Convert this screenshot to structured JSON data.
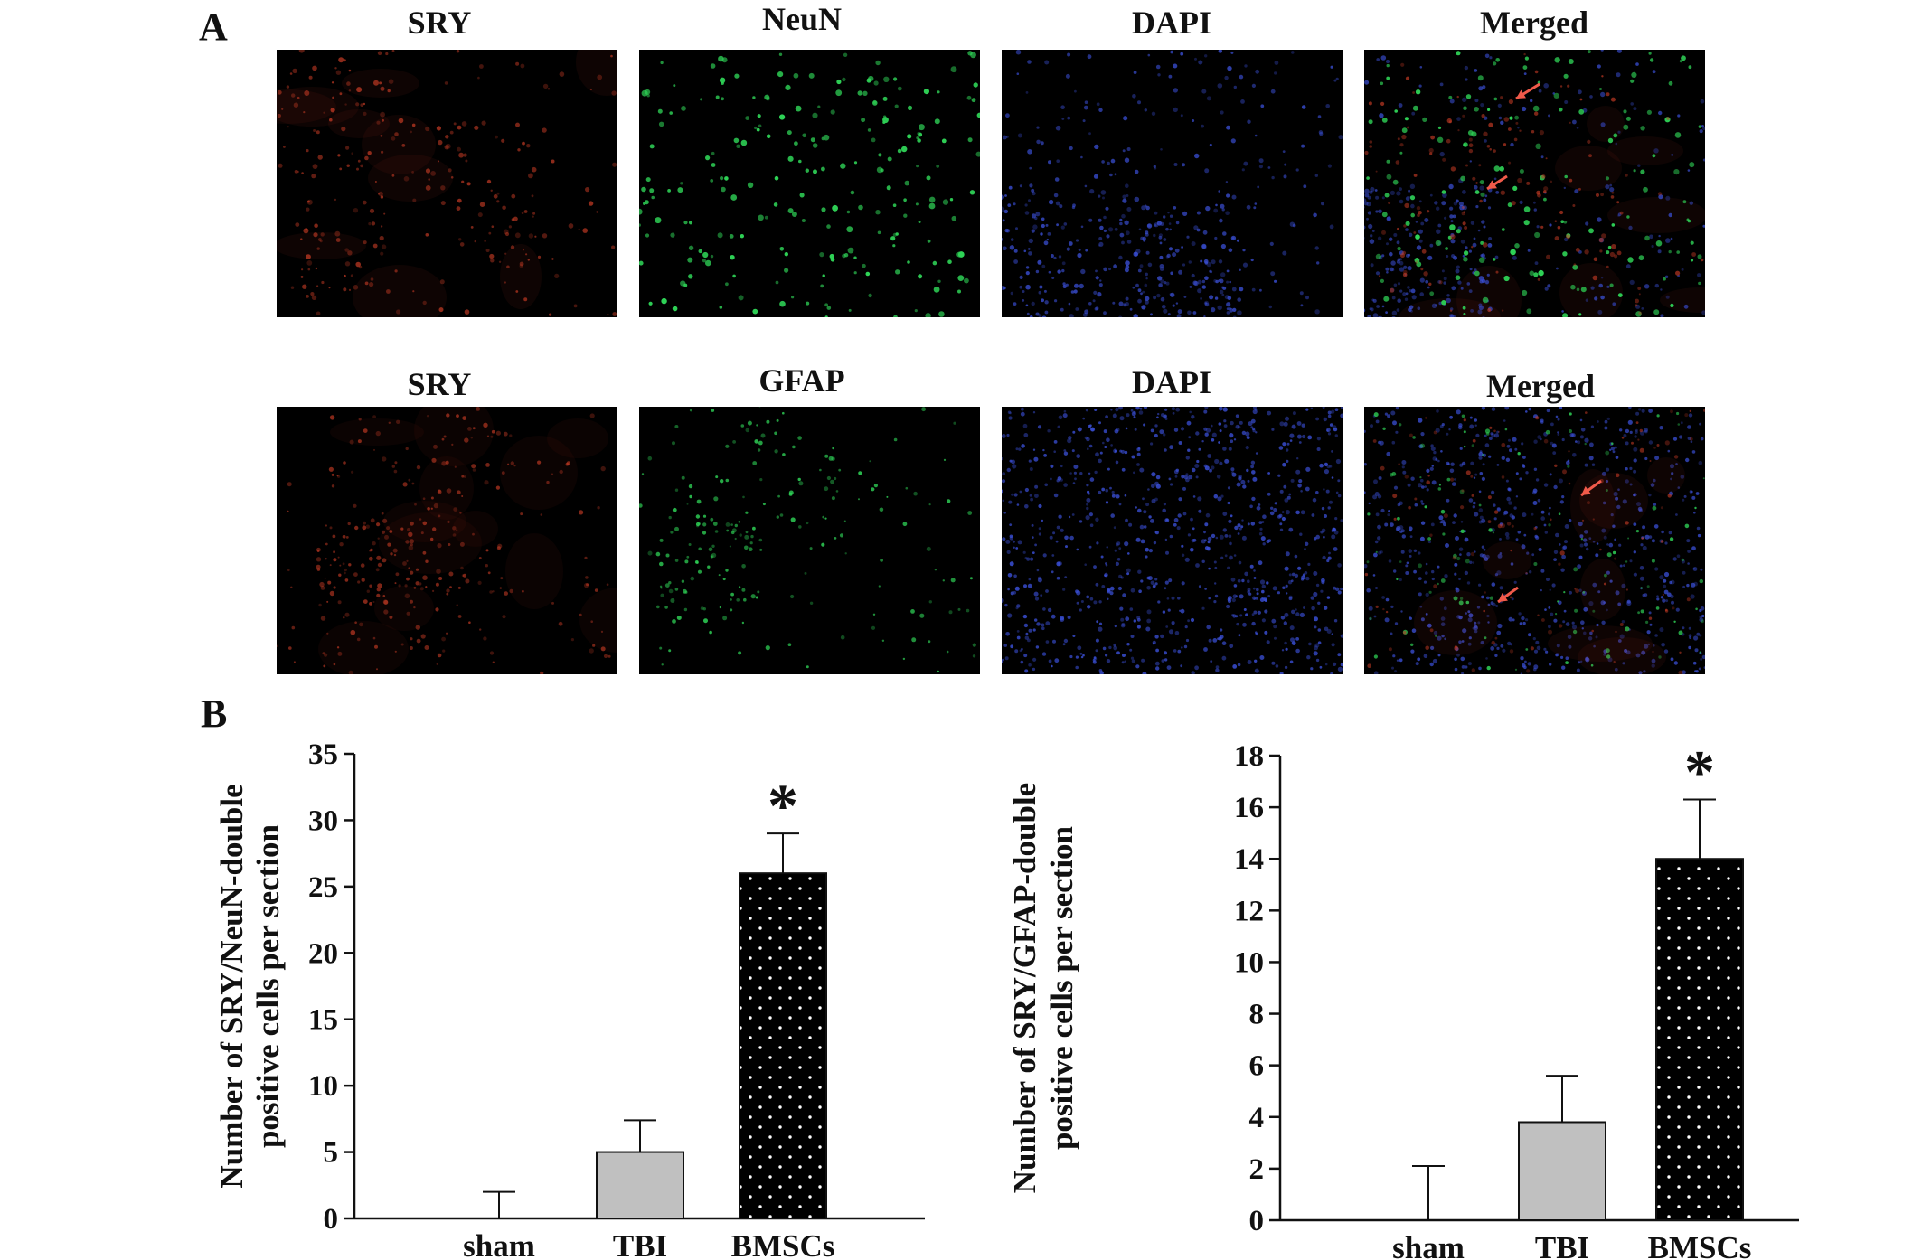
{
  "panel_a": {
    "letter": "A",
    "rows": [
      {
        "labels": [
          "SRY",
          "NeuN",
          "DAPI",
          "Merged"
        ]
      },
      {
        "labels": [
          "SRY",
          "GFAP",
          "DAPI",
          "Merged"
        ]
      }
    ],
    "colors": {
      "red": "#c23a24",
      "green": "#2fd457",
      "blue": "#3a4fd6",
      "arrow": "#f05a4a"
    }
  },
  "panel_b": {
    "letter": "B"
  },
  "chart_data": [
    {
      "type": "bar",
      "categories": [
        "sham",
        "TBI",
        "BMSCs"
      ],
      "values": [
        0,
        5,
        26
      ],
      "errors": [
        2,
        2.4,
        3
      ],
      "significance": [
        "",
        "",
        "*"
      ],
      "ylabel_lines": [
        "Number of SRY/NeuN-double",
        "positive cells per section"
      ],
      "ylim": [
        0,
        35
      ],
      "yticks": [
        0,
        5,
        10,
        15,
        20,
        25,
        30,
        35
      ],
      "bar_fills": [
        "#ffffff",
        "#c0c0c0",
        "#000000"
      ]
    },
    {
      "type": "bar",
      "categories": [
        "sham",
        "TBI",
        "BMSCs"
      ],
      "values": [
        0,
        3.8,
        14
      ],
      "errors": [
        2.1,
        1.8,
        2.3
      ],
      "significance": [
        "",
        "",
        "*"
      ],
      "ylabel_lines": [
        "Number of SRY/GFAP-double",
        "positive cells per section"
      ],
      "ylim": [
        0,
        18
      ],
      "yticks": [
        0,
        2,
        4,
        6,
        8,
        10,
        12,
        14,
        16,
        18
      ],
      "bar_fills": [
        "#ffffff",
        "#c0c0c0",
        "#000000"
      ]
    }
  ]
}
